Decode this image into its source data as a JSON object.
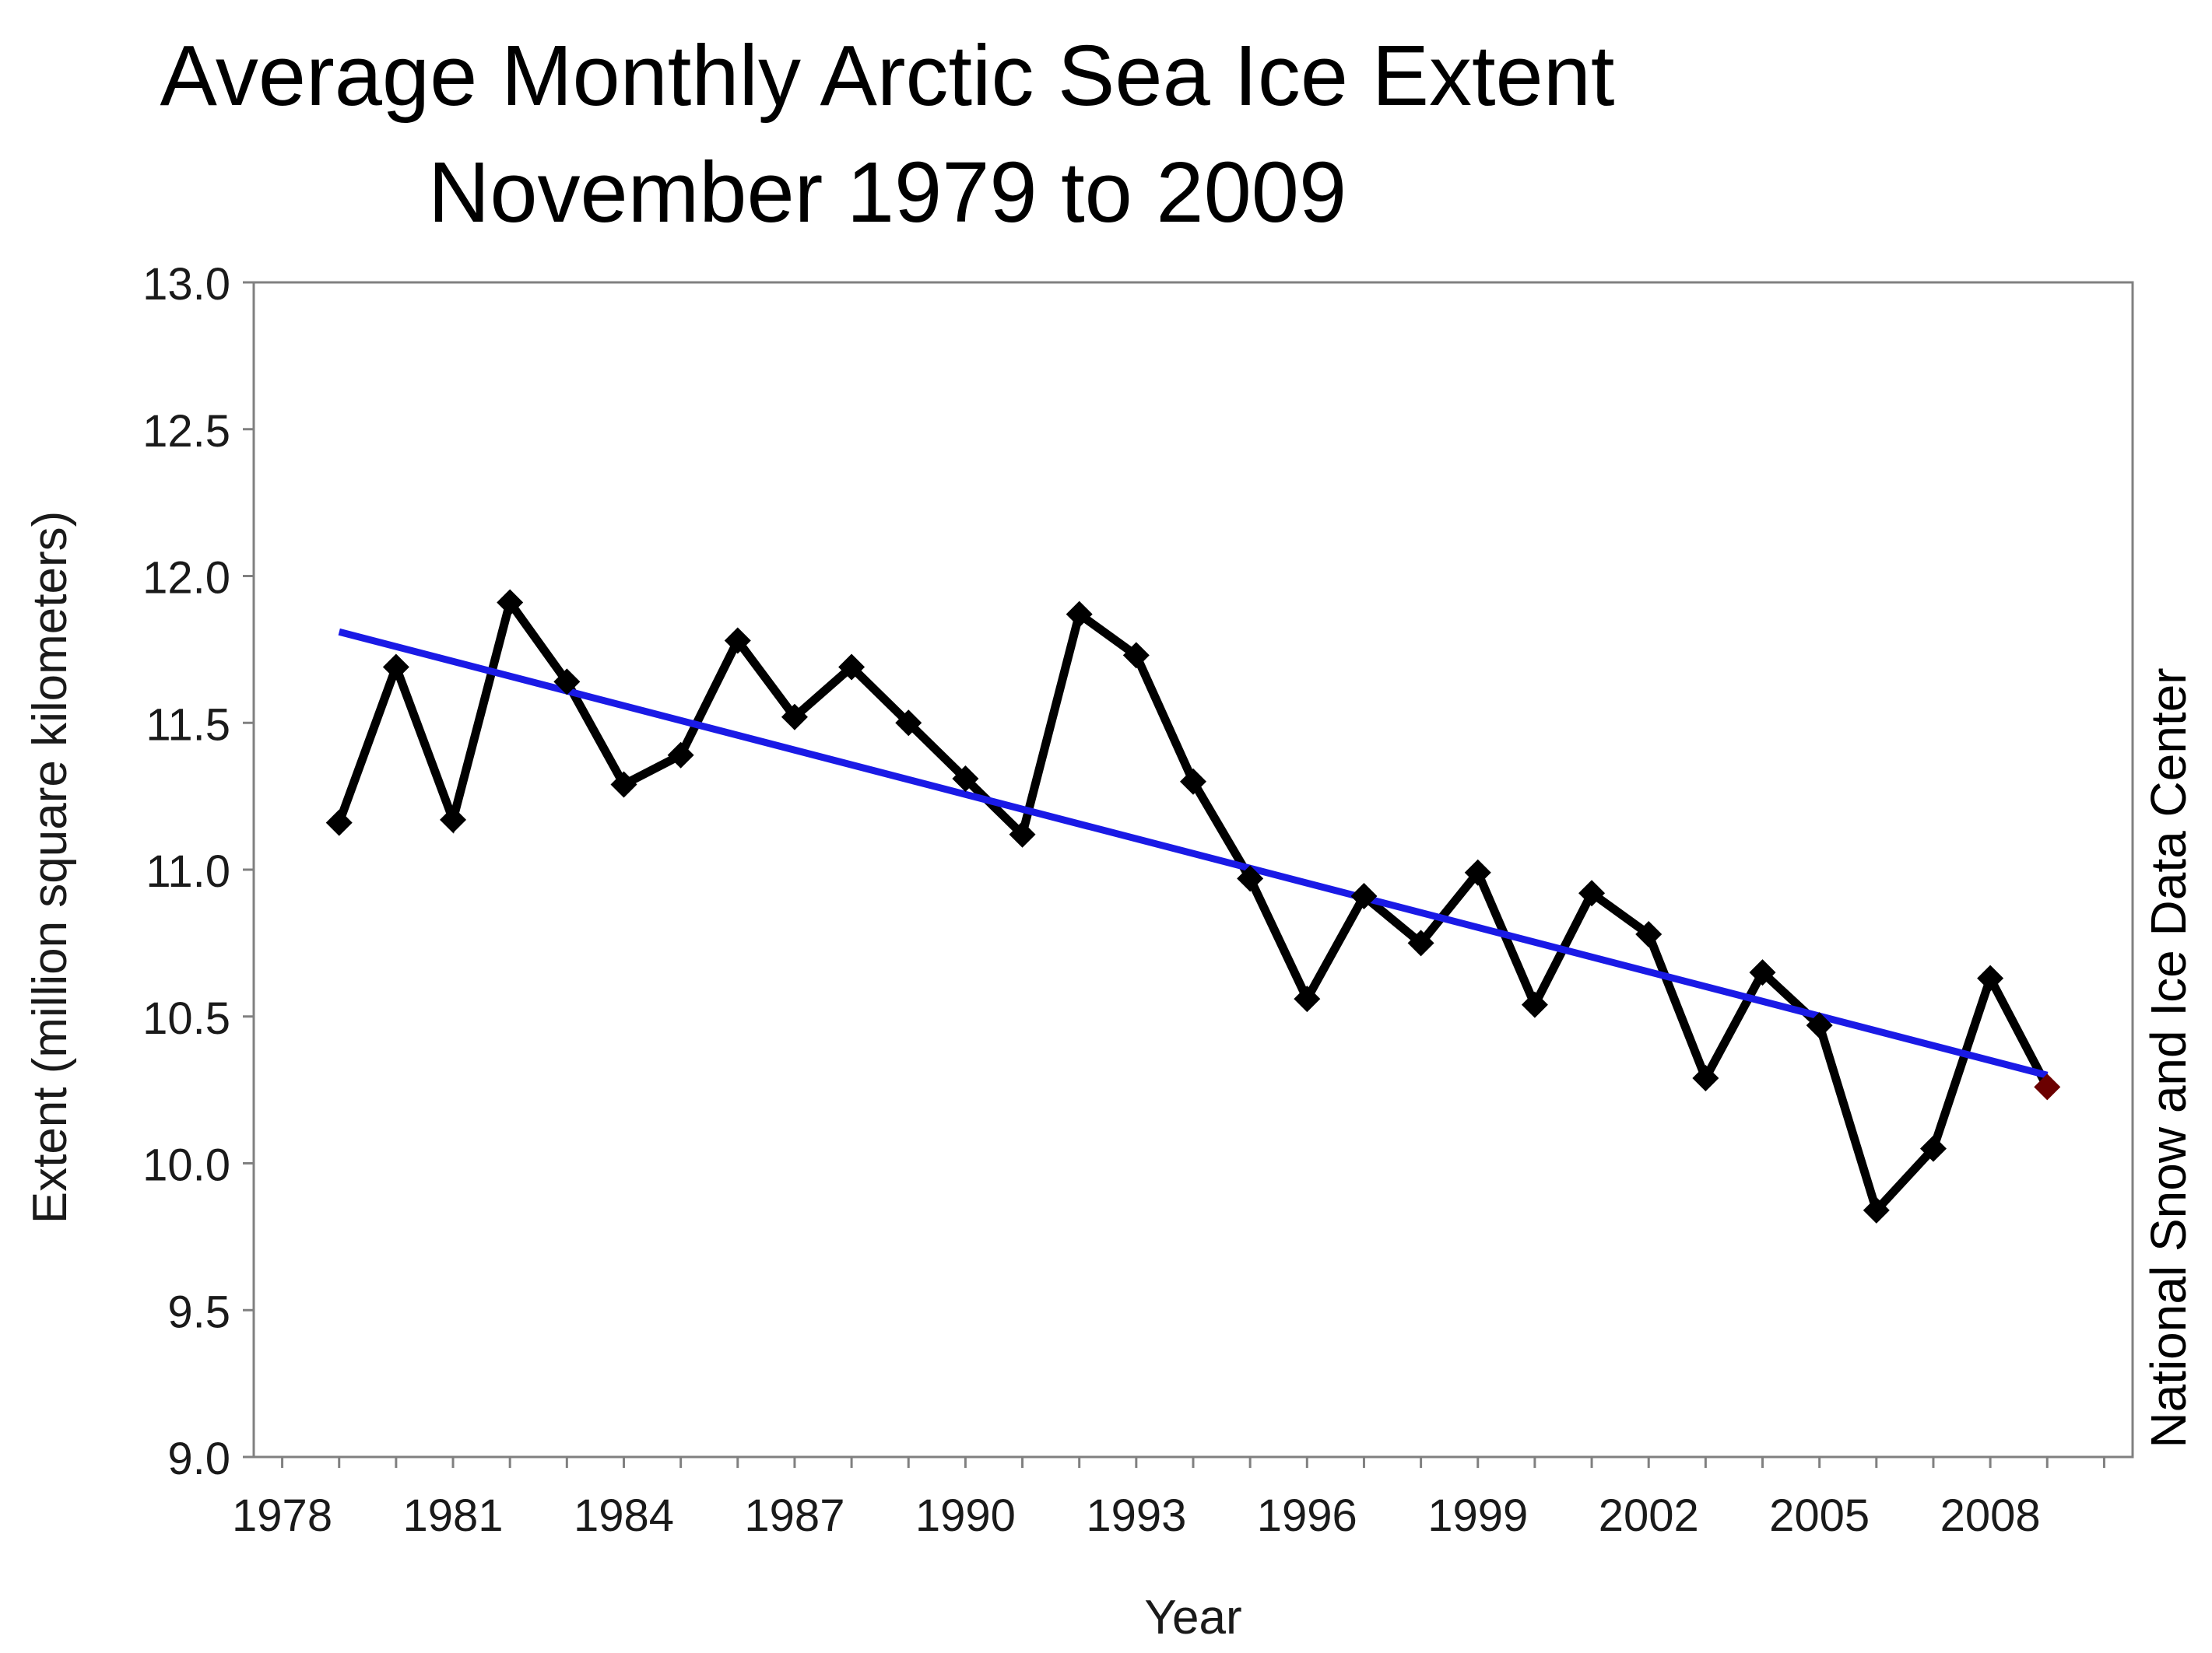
{
  "chart_data": {
    "type": "line",
    "title": "Average Monthly Arctic Sea Ice Extent",
    "subtitle": "November 1979 to 2009",
    "xlabel": "Year",
    "ylabel": "Extent (million square kilometers)",
    "credit": "National Snow and Ice Data Center",
    "xlim": [
      1977.5,
      2010.5
    ],
    "ylim": [
      9.0,
      13.0
    ],
    "x_ticks": [
      "1978",
      "1981",
      "1984",
      "1987",
      "1990",
      "1993",
      "1996",
      "1999",
      "2002",
      "2005",
      "2008"
    ],
    "y_ticks": [
      "9.0",
      "9.5",
      "10.0",
      "10.5",
      "11.0",
      "11.5",
      "12.0",
      "12.5",
      "13.0"
    ],
    "grid": false,
    "x": [
      1979,
      1980,
      1981,
      1982,
      1983,
      1984,
      1985,
      1986,
      1987,
      1988,
      1989,
      1990,
      1991,
      1992,
      1993,
      1994,
      1995,
      1996,
      1997,
      1998,
      1999,
      2000,
      2001,
      2002,
      2003,
      2004,
      2005,
      2006,
      2007,
      2008,
      2009
    ],
    "series": [
      {
        "values": [
          11.16,
          11.69,
          11.17,
          11.91,
          11.64,
          11.29,
          11.39,
          11.78,
          11.52,
          11.69,
          11.5,
          11.31,
          11.12,
          11.87,
          11.73,
          11.3,
          10.97,
          10.56,
          10.91,
          10.75,
          10.99,
          10.54,
          10.92,
          10.78,
          10.29,
          10.65,
          10.47,
          9.84,
          10.05,
          10.63,
          10.26
        ],
        "color": "#000000",
        "marker": "diamond",
        "highlight_last_color": "#6b0000"
      },
      {
        "x": [
          1979,
          2009
        ],
        "values": [
          11.81,
          10.3
        ],
        "color": "#1a1ae6",
        "role": "trend"
      }
    ]
  }
}
